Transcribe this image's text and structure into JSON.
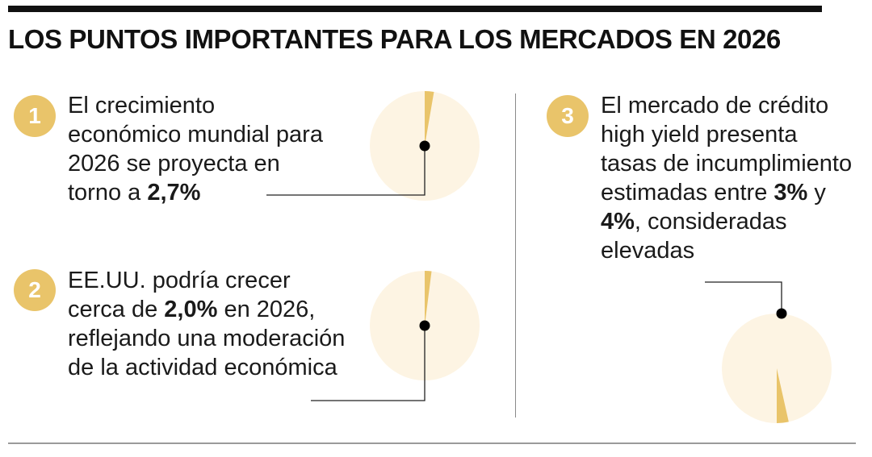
{
  "title": "LOS PUNTOS IMPORTANTES PARA LOS MERCADOS EN 2026",
  "accent_color": "#e9c46a",
  "pie_background_color": "#fdf4e3",
  "chart_data": [
    {
      "type": "pie",
      "number": "1",
      "text_before": "El crecimiento económico mundial para 2026 se proyecta en torno a ",
      "value_label": "2,7%",
      "text_after": "",
      "slices": [
        {
          "value": 2.7
        },
        {
          "value": 97.3
        }
      ]
    },
    {
      "type": "pie",
      "number": "2",
      "text_before": "EE.UU. podría crecer cerca de ",
      "value_label": "2,0%",
      "text_after": " en 2026, reflejando una moderación de la actividad económica",
      "slices": [
        {
          "value": 2.0
        },
        {
          "value": 98.0
        }
      ]
    },
    {
      "type": "pie",
      "number": "3",
      "text_before": "El mercado de crédito high yield presenta tasas de incumplimiento estimadas entre ",
      "value_label": "3%",
      "text_middle": " y ",
      "value_label_2": "4%",
      "text_after": ", consideradas elevadas",
      "slices": [
        {
          "value": 3.5
        },
        {
          "value": 96.5
        }
      ]
    }
  ]
}
